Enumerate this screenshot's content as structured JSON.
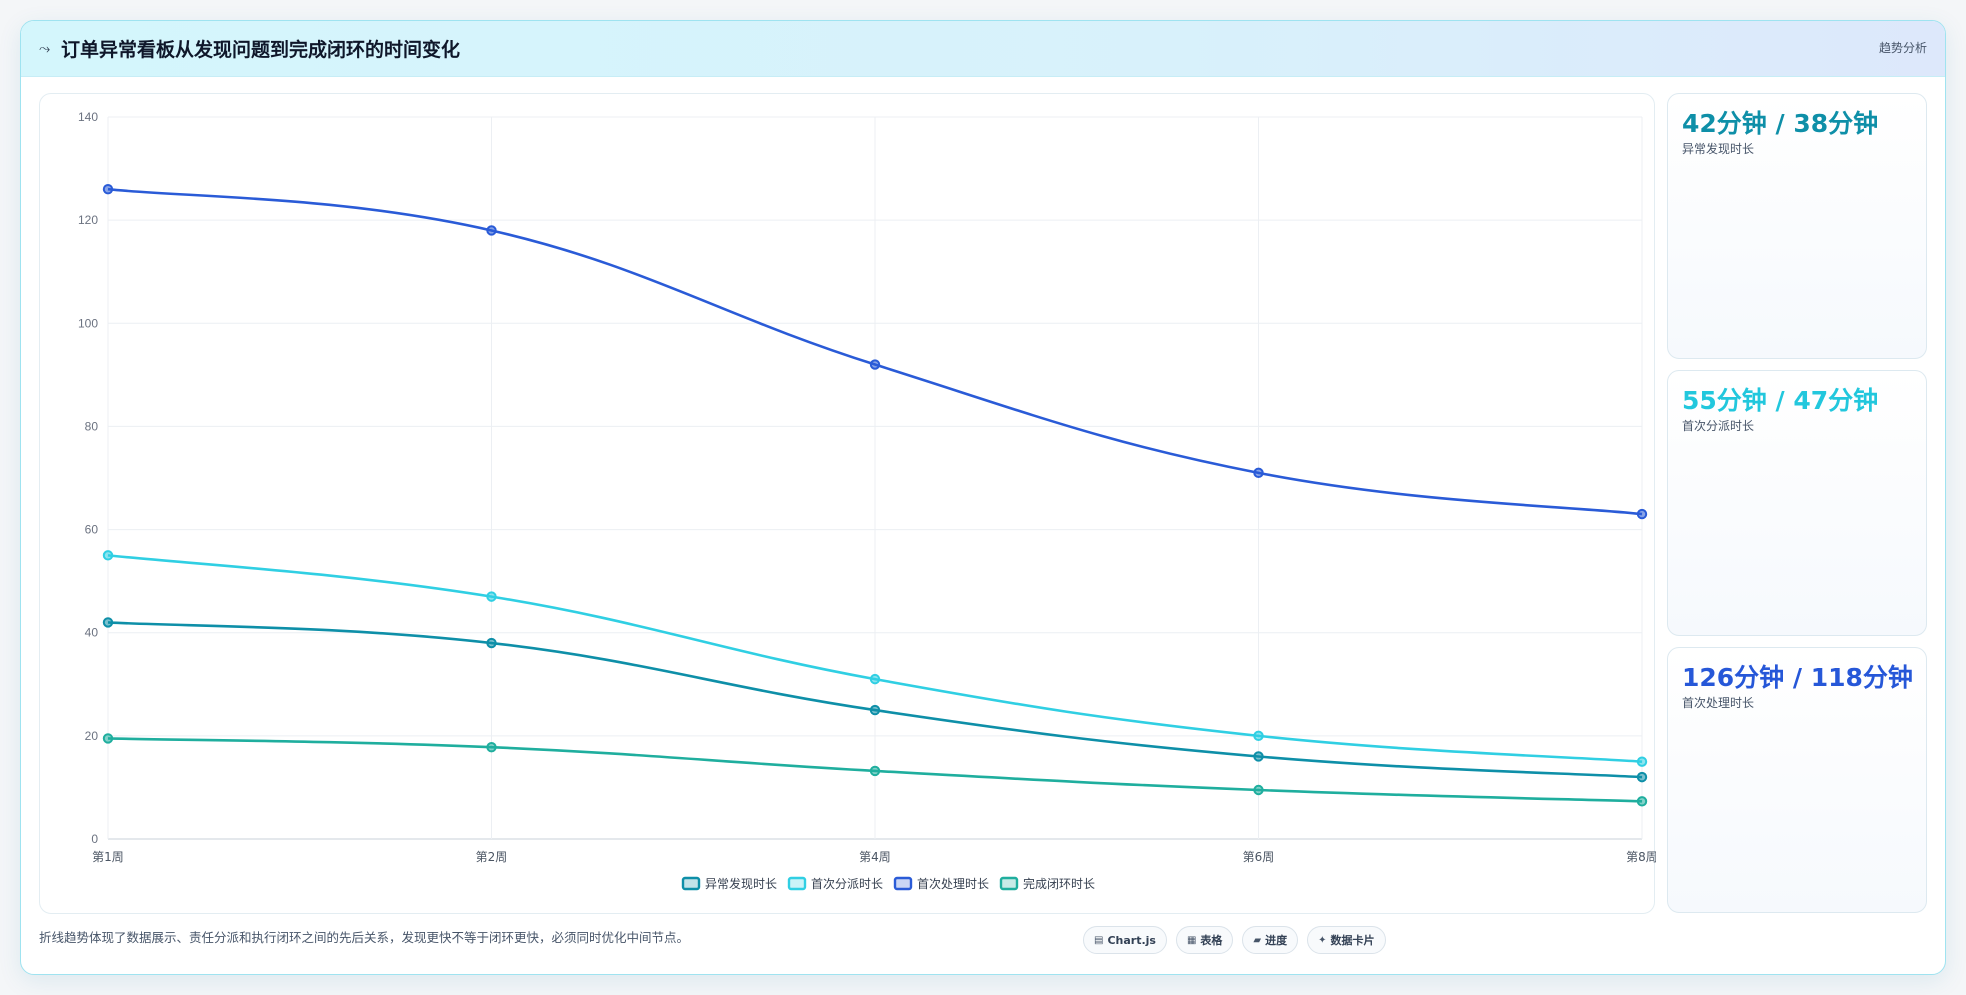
{
  "header": {
    "title": "订单异常看板从发现问题到完成闭环的时间变化",
    "tag": "趋势分析",
    "icon": "trend-line-icon"
  },
  "summary_cards": [
    {
      "value": "42分钟 / 38分钟",
      "label": "异常发现时长",
      "color": "#0e8fa8"
    },
    {
      "value": "55分钟 / 47分钟",
      "label": "首次分派时长",
      "color": "#22c7dd"
    },
    {
      "value": "126分钟 / 118分钟",
      "label": "首次处理时长",
      "color": "#2657d8"
    }
  ],
  "footer": {
    "note": "折线趋势体现了数据展示、责任分派和执行闭环之间的先后关系，发现更快不等于闭环更快，必须同时优化中间节点。",
    "chips": [
      {
        "icon": "chart-icon",
        "glyph": "▤",
        "label": "Chart.js"
      },
      {
        "icon": "table-icon",
        "glyph": "▦",
        "label": "表格"
      },
      {
        "icon": "progress-icon",
        "glyph": "▰",
        "label": "进度"
      },
      {
        "icon": "card-icon",
        "glyph": "✦",
        "label": "数据卡片"
      }
    ]
  },
  "chart_data": {
    "type": "line",
    "x": [
      "第1周",
      "第2周",
      "第4周",
      "第6周",
      "第8周"
    ],
    "ylim": [
      0,
      140
    ],
    "yticks": [
      0,
      20,
      40,
      60,
      80,
      100,
      120,
      140
    ],
    "grid": true,
    "legend": "bottom",
    "series": [
      {
        "name": "异常发现时长",
        "color": "#0e8fa8",
        "values": [
          42,
          38,
          25,
          16,
          12
        ]
      },
      {
        "name": "首次分派时长",
        "color": "#30cfe3",
        "values": [
          55,
          47,
          31,
          20,
          15
        ]
      },
      {
        "name": "首次处理时长",
        "color": "#2a5bd7",
        "values": [
          126,
          118,
          92,
          71,
          63
        ]
      },
      {
        "name": "完成闭环时长",
        "color": "#1fae9e",
        "values": [
          19.5,
          17.8,
          13.2,
          9.5,
          7.3
        ]
      }
    ]
  }
}
